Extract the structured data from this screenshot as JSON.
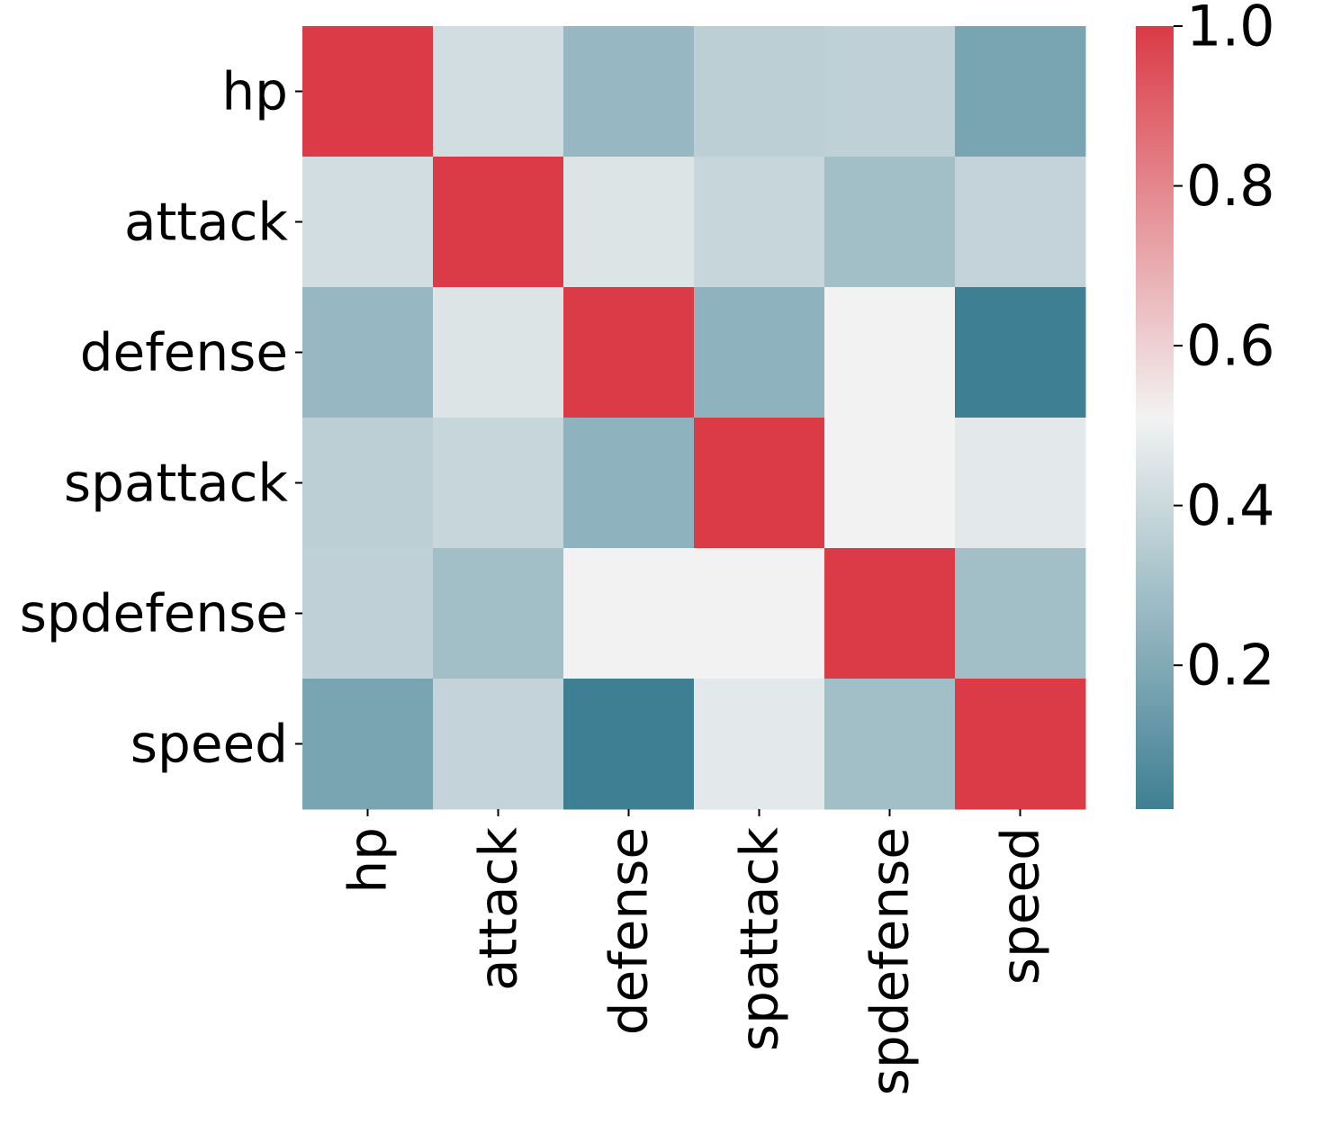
{
  "chart_data": {
    "type": "heatmap",
    "title": "",
    "xlabel": "",
    "ylabel": "",
    "x_categories": [
      "hp",
      "attack",
      "defense",
      "spattack",
      "spdefense",
      "speed"
    ],
    "y_categories": [
      "hp",
      "attack",
      "defense",
      "spattack",
      "spdefense",
      "speed"
    ],
    "values": [
      [
        1.0,
        0.42,
        0.26,
        0.36,
        0.37,
        0.18
      ],
      [
        0.42,
        1.0,
        0.45,
        0.39,
        0.29,
        0.38
      ],
      [
        0.26,
        0.45,
        1.0,
        0.24,
        0.51,
        0.02
      ],
      [
        0.36,
        0.39,
        0.24,
        1.0,
        0.51,
        0.47
      ],
      [
        0.37,
        0.29,
        0.51,
        0.51,
        1.0,
        0.29
      ],
      [
        0.18,
        0.38,
        0.02,
        0.47,
        0.29,
        1.0
      ]
    ],
    "colorbar": {
      "min": 0.02,
      "max": 1.0,
      "ticks": [
        0.2,
        0.4,
        0.6,
        0.8,
        1.0
      ],
      "tick_labels": [
        "0.2",
        "0.4",
        "0.6",
        "0.8",
        "1.0"
      ],
      "colors": {
        "low": "#3f7f93",
        "mid": "#f2f2f2",
        "high": "#da3b46"
      }
    },
    "grid": false,
    "legend": "colorbar-right"
  }
}
